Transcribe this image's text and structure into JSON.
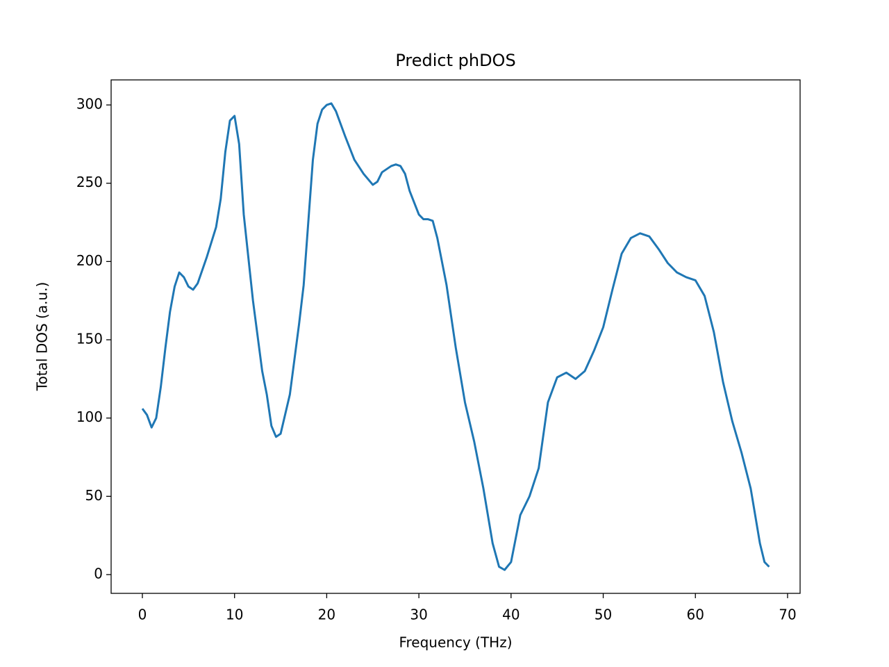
{
  "chart_data": {
    "type": "line",
    "title": "Predict phDOS",
    "x_label": "Frequency (THz)",
    "y_label": "Total DOS (a.u.)",
    "x": [
      0,
      0.5,
      1,
      1.5,
      2,
      2.5,
      3,
      3.5,
      4,
      4.5,
      5,
      5.5,
      6,
      7,
      8,
      8.5,
      9,
      9.5,
      10,
      10.5,
      11,
      12,
      13,
      13.5,
      14,
      14.5,
      15,
      16,
      17,
      17.5,
      18,
      18.5,
      19,
      19.5,
      20,
      20.5,
      21,
      22,
      23,
      24,
      25,
      25.5,
      26,
      27,
      27.5,
      28,
      28.5,
      29,
      30,
      30.5,
      31,
      31.5,
      32,
      33,
      34,
      35,
      36,
      37,
      38,
      38.7,
      39.3,
      40,
      41,
      42,
      43,
      44,
      45,
      46,
      47,
      48,
      49,
      50,
      51,
      52,
      53,
      54,
      55,
      56,
      57,
      58,
      59,
      60,
      61,
      62,
      63,
      64,
      65,
      66,
      67,
      67.5,
      68
    ],
    "values": [
      106,
      102,
      94,
      100,
      120,
      145,
      168,
      184,
      193,
      190,
      184,
      182,
      186,
      203,
      222,
      240,
      270,
      290,
      293,
      275,
      230,
      175,
      130,
      115,
      95,
      88,
      90,
      115,
      160,
      185,
      225,
      265,
      288,
      297,
      300,
      301,
      296,
      280,
      265,
      256,
      249,
      251,
      257,
      261,
      262,
      261,
      256,
      245,
      230,
      227,
      227,
      226,
      215,
      185,
      145,
      110,
      85,
      55,
      20,
      5,
      3,
      8,
      38,
      50,
      68,
      110,
      126,
      129,
      125,
      130,
      143,
      158,
      182,
      205,
      215,
      218,
      216,
      208,
      199,
      193,
      190,
      188,
      178,
      155,
      123,
      98,
      78,
      55,
      20,
      8,
      5
    ],
    "color": "#1f77b4",
    "xlim": [
      -3.39,
      71.36
    ],
    "ylim": [
      -11.98,
      316.0
    ],
    "xticks": [
      0,
      10,
      20,
      30,
      40,
      50,
      60,
      70
    ],
    "yticks": [
      0,
      50,
      100,
      150,
      200,
      250,
      300
    ]
  }
}
